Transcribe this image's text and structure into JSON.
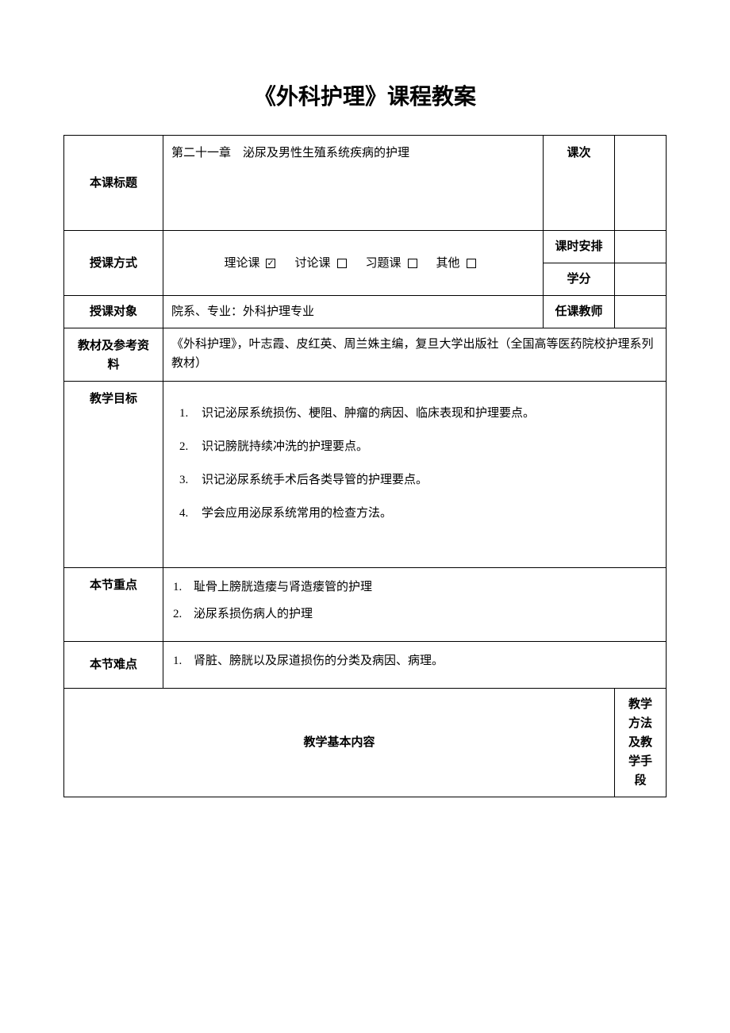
{
  "title": "《外科护理》课程教案",
  "labels": {
    "course_title": "本课标题",
    "lesson_number": "课次",
    "teaching_mode": "授课方式",
    "hours": "课时安排",
    "credits": "学分",
    "audience": "授课对象",
    "instructor": "任课教师",
    "materials": "教材及参考资料",
    "objectives": "教学目标",
    "key_points": "本节重点",
    "difficulties": "本节难点",
    "content": "教学基本内容",
    "methods": "教学方法及教学手段"
  },
  "course_title_value": "第二十一章　泌尿及男性生殖系统疾病的护理",
  "teaching_mode_options": [
    {
      "label": "理论课",
      "checked": true
    },
    {
      "label": "讨论课",
      "checked": false
    },
    {
      "label": "习题课",
      "checked": false
    },
    {
      "label": "其他",
      "checked": false
    }
  ],
  "audience_value": "院系、专业：外科护理专业",
  "materials_value": "《外科护理》，叶志霞、皮红英、周兰姝主编，复旦大学出版社（全国高等医药院校护理系列教材）",
  "objectives_list": [
    "识记泌尿系统损伤、梗阻、肿瘤的病因、临床表现和护理要点。",
    "识记膀胱持续冲洗的护理要点。",
    "识记泌尿系统手术后各类导管的护理要点。",
    "学会应用泌尿系统常用的检查方法。"
  ],
  "key_points_list": [
    "耻骨上膀胱造瘘与肾造瘘管的护理",
    "泌尿系损伤病人的护理"
  ],
  "difficulties_list": [
    "肾脏、膀胱以及尿道损伤的分类及病因、病理。"
  ],
  "values": {
    "lesson_number": "",
    "hours": "",
    "credits": "",
    "instructor": ""
  }
}
